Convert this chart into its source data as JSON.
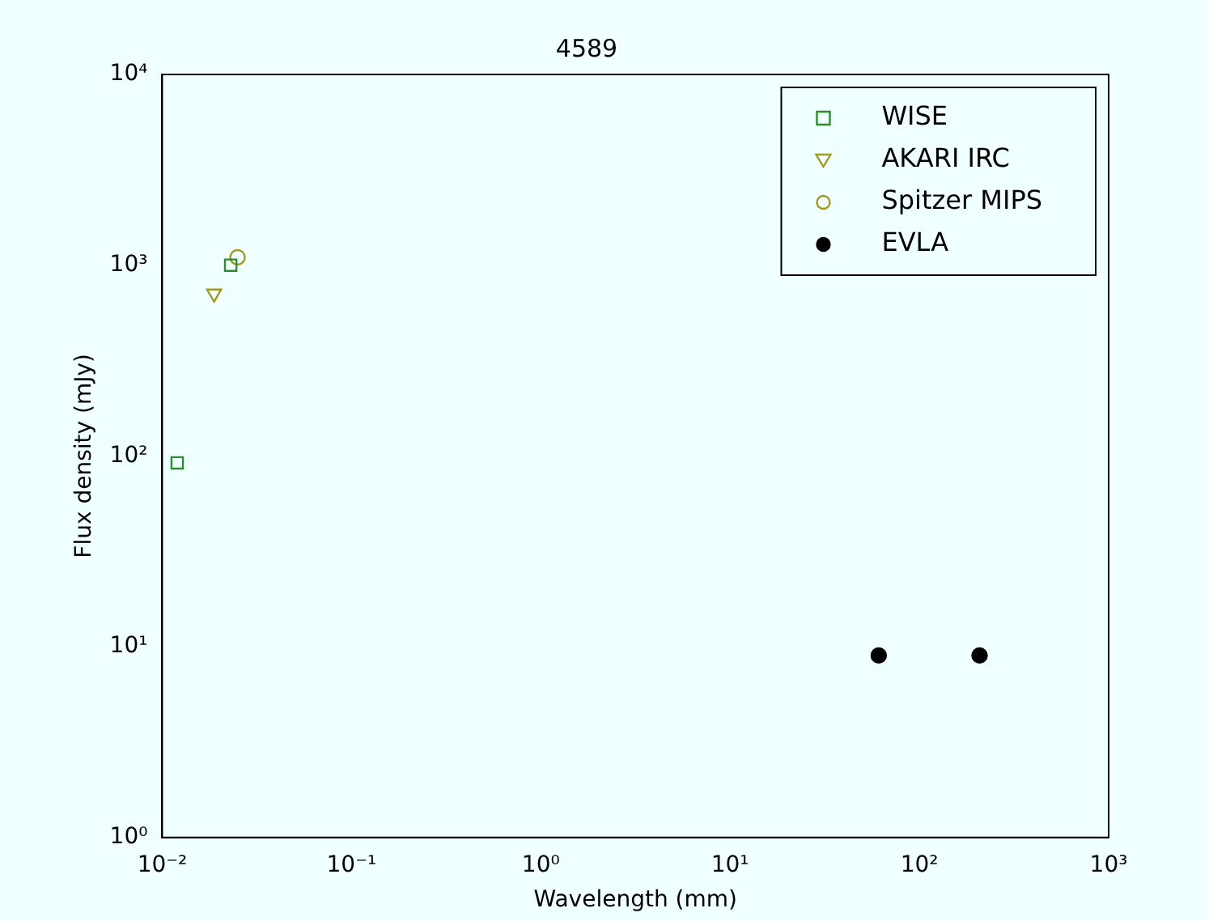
{
  "chart_data": {
    "type": "scatter",
    "title": "4589",
    "xlabel": "Wavelength (mm)",
    "ylabel": "Flux density (mJy)",
    "log": "xy",
    "grid": false,
    "legend": "top right",
    "xlim": [
      0.01,
      1000
    ],
    "ylim": [
      1,
      10000
    ],
    "xticks": [
      {
        "value": 0.01,
        "label": "10⁻²"
      },
      {
        "value": 0.1,
        "label": "10⁻¹"
      },
      {
        "value": 1,
        "label": "10⁰"
      },
      {
        "value": 10,
        "label": "10¹"
      },
      {
        "value": 100,
        "label": "10²"
      },
      {
        "value": 1000,
        "label": "10³"
      }
    ],
    "yticks": [
      {
        "value": 1,
        "label": "10⁰"
      },
      {
        "value": 10,
        "label": "10¹"
      },
      {
        "value": 100,
        "label": "10²"
      },
      {
        "value": 1000,
        "label": "10³"
      },
      {
        "value": 10000,
        "label": "10⁴"
      }
    ],
    "series": [
      {
        "name": "WISE",
        "color": "#2e8b2e",
        "marker": "square",
        "x": [
          0.012,
          0.023
        ],
        "values": [
          92,
          1000
        ]
      },
      {
        "name": "AKARI IRC",
        "color": "#a09a20",
        "marker": "triangle",
        "x": [
          0.0188
        ],
        "values": [
          710
        ]
      },
      {
        "name": "Spitzer MIPS",
        "color": "#a09a20",
        "marker": "circle",
        "x": [
          0.025
        ],
        "values": [
          1100
        ]
      },
      {
        "name": "EVLA",
        "color": "#000000",
        "marker": "filled-circle",
        "x": [
          61,
          208
        ],
        "values": [
          9,
          9
        ]
      }
    ]
  }
}
